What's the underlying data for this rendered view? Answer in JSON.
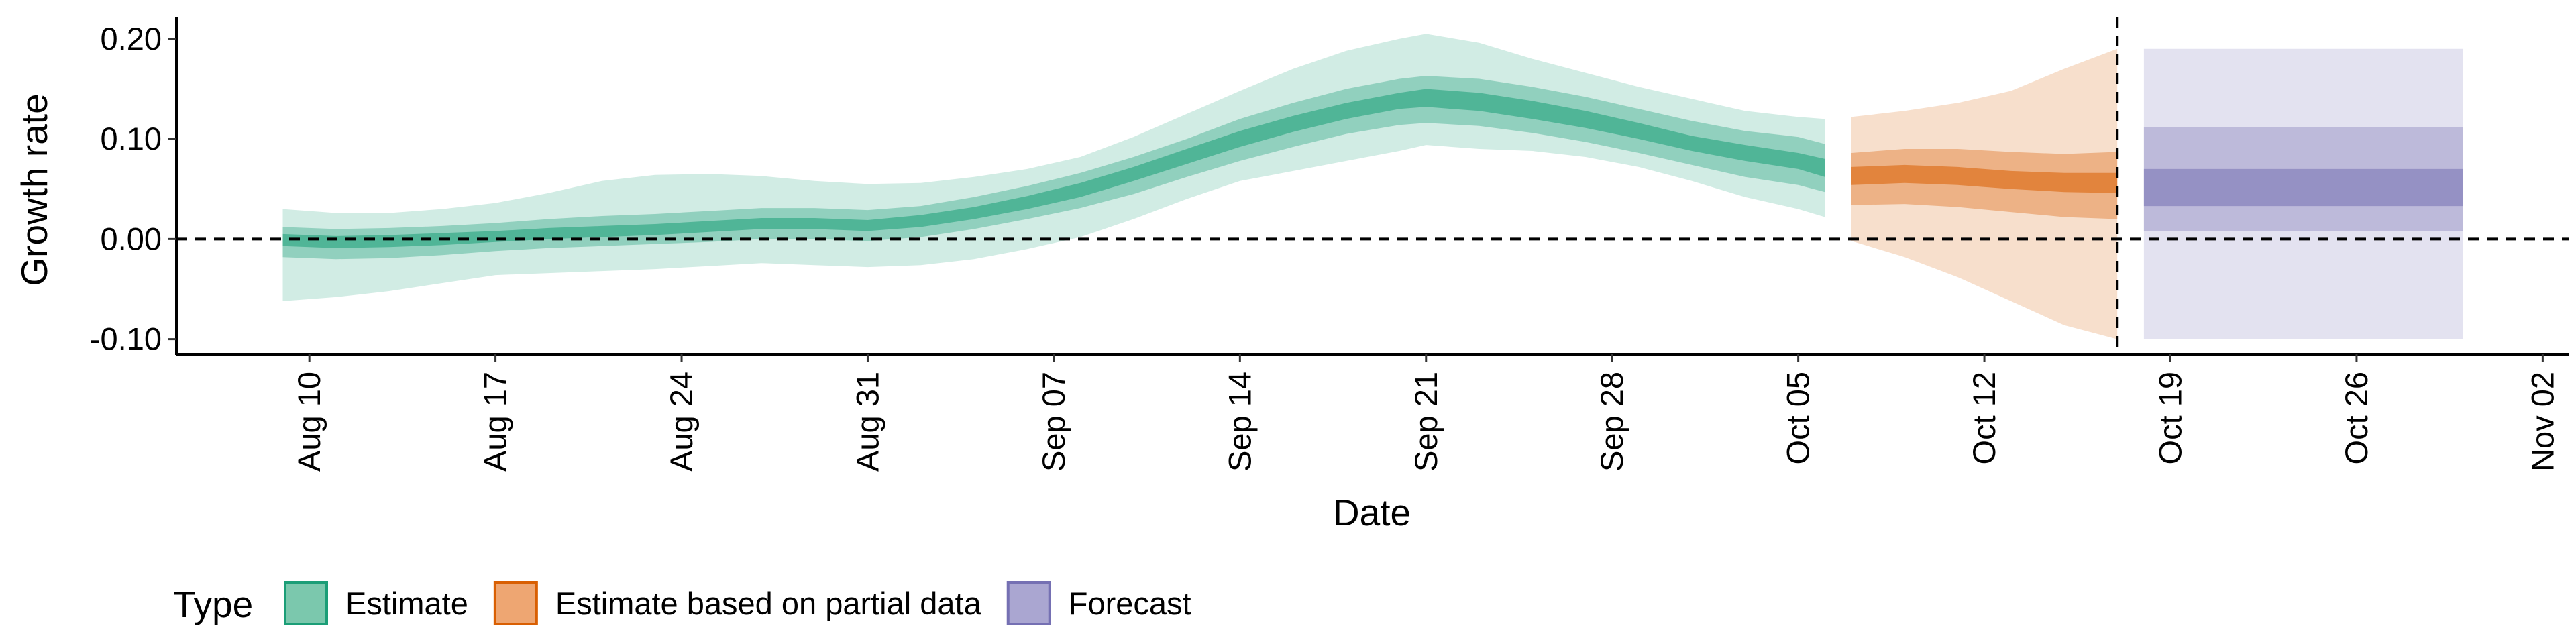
{
  "chart_data": {
    "type": "area",
    "title": "",
    "xlabel": "Date",
    "ylabel": "Growth rate",
    "x_range": [
      "2020-08-05",
      "2020-11-03"
    ],
    "ylim": [
      -0.115,
      0.222
    ],
    "y_ticks": [
      {
        "value": 0.2,
        "label": "0.20"
      },
      {
        "value": 0.1,
        "label": "0.10"
      },
      {
        "value": 0.0,
        "label": "0.00"
      },
      {
        "value": -0.1,
        "label": "-0.10"
      }
    ],
    "x_ticks": [
      {
        "date": "2020-08-10",
        "label": "Aug 10"
      },
      {
        "date": "2020-08-17",
        "label": "Aug 17"
      },
      {
        "date": "2020-08-24",
        "label": "Aug 24"
      },
      {
        "date": "2020-08-31",
        "label": "Aug 31"
      },
      {
        "date": "2020-09-07",
        "label": "Sep 07"
      },
      {
        "date": "2020-09-14",
        "label": "Sep 14"
      },
      {
        "date": "2020-09-21",
        "label": "Sep 21"
      },
      {
        "date": "2020-09-28",
        "label": "Sep 28"
      },
      {
        "date": "2020-10-05",
        "label": "Oct 05"
      },
      {
        "date": "2020-10-12",
        "label": "Oct 12"
      },
      {
        "date": "2020-10-19",
        "label": "Oct 19"
      },
      {
        "date": "2020-10-26",
        "label": "Oct 26"
      },
      {
        "date": "2020-11-02",
        "label": "Nov 02"
      }
    ],
    "reference_lines": {
      "horizontal_y": 0.0,
      "vertical_x": "2020-10-17"
    },
    "legend": {
      "title": "Type",
      "placement": "bottom-left",
      "entries": [
        {
          "label": "Estimate",
          "fill": "#7bc8ad",
          "stroke": "#1b9e77"
        },
        {
          "label": "Estimate based on partial data",
          "fill": "#eea672",
          "stroke": "#d95f02"
        },
        {
          "label": "Forecast",
          "fill": "#aaa6d1",
          "stroke": "#7570b3"
        }
      ]
    },
    "series": [
      {
        "type_label": "Estimate",
        "colors": {
          "outer": "#1b9e77",
          "mid": "#1b9e77",
          "inner": "#1b9e77"
        },
        "points": [
          {
            "x": "2020-08-09",
            "inner": [
              -0.007,
              0.005
            ],
            "mid": [
              -0.018,
              0.012
            ],
            "outer": [
              -0.062,
              0.03
            ]
          },
          {
            "x": "2020-08-11",
            "inner": [
              -0.009,
              0.003
            ],
            "mid": [
              -0.02,
              0.01
            ],
            "outer": [
              -0.058,
              0.026
            ]
          },
          {
            "x": "2020-08-13",
            "inner": [
              -0.008,
              0.004
            ],
            "mid": [
              -0.019,
              0.011
            ],
            "outer": [
              -0.052,
              0.026
            ]
          },
          {
            "x": "2020-08-15",
            "inner": [
              -0.006,
              0.006
            ],
            "mid": [
              -0.016,
              0.013
            ],
            "outer": [
              -0.044,
              0.03
            ]
          },
          {
            "x": "2020-08-17",
            "inner": [
              -0.003,
              0.008
            ],
            "mid": [
              -0.012,
              0.016
            ],
            "outer": [
              -0.036,
              0.036
            ]
          },
          {
            "x": "2020-08-19",
            "inner": [
              0.0,
              0.011
            ],
            "mid": [
              -0.009,
              0.02
            ],
            "outer": [
              -0.034,
              0.046
            ]
          },
          {
            "x": "2020-08-21",
            "inner": [
              0.002,
              0.013
            ],
            "mid": [
              -0.007,
              0.023
            ],
            "outer": [
              -0.032,
              0.058
            ]
          },
          {
            "x": "2020-08-23",
            "inner": [
              0.004,
              0.015
            ],
            "mid": [
              -0.005,
              0.025
            ],
            "outer": [
              -0.03,
              0.064
            ]
          },
          {
            "x": "2020-08-25",
            "inner": [
              0.007,
              0.018
            ],
            "mid": [
              -0.003,
              0.028
            ],
            "outer": [
              -0.027,
              0.065
            ]
          },
          {
            "x": "2020-08-27",
            "inner": [
              0.01,
              0.021
            ],
            "mid": [
              0.0,
              0.031
            ],
            "outer": [
              -0.024,
              0.063
            ]
          },
          {
            "x": "2020-08-29",
            "inner": [
              0.01,
              0.021
            ],
            "mid": [
              0.0,
              0.031
            ],
            "outer": [
              -0.026,
              0.058
            ]
          },
          {
            "x": "2020-08-31",
            "inner": [
              0.008,
              0.019
            ],
            "mid": [
              -0.002,
              0.029
            ],
            "outer": [
              -0.028,
              0.055
            ]
          },
          {
            "x": "2020-09-02",
            "inner": [
              0.012,
              0.024
            ],
            "mid": [
              0.002,
              0.033
            ],
            "outer": [
              -0.026,
              0.056
            ]
          },
          {
            "x": "2020-09-04",
            "inner": [
              0.02,
              0.032
            ],
            "mid": [
              0.01,
              0.042
            ],
            "outer": [
              -0.02,
              0.062
            ]
          },
          {
            "x": "2020-09-06",
            "inner": [
              0.03,
              0.043
            ],
            "mid": [
              0.02,
              0.053
            ],
            "outer": [
              -0.01,
              0.07
            ]
          },
          {
            "x": "2020-09-08",
            "inner": [
              0.042,
              0.056
            ],
            "mid": [
              0.031,
              0.066
            ],
            "outer": [
              0.002,
              0.082
            ]
          },
          {
            "x": "2020-09-10",
            "inner": [
              0.058,
              0.072
            ],
            "mid": [
              0.045,
              0.082
            ],
            "outer": [
              0.02,
              0.102
            ]
          },
          {
            "x": "2020-09-12",
            "inner": [
              0.075,
              0.09
            ],
            "mid": [
              0.062,
              0.1
            ],
            "outer": [
              0.04,
              0.125
            ]
          },
          {
            "x": "2020-09-14",
            "inner": [
              0.092,
              0.108
            ],
            "mid": [
              0.078,
              0.12
            ],
            "outer": [
              0.058,
              0.148
            ]
          },
          {
            "x": "2020-09-16",
            "inner": [
              0.107,
              0.123
            ],
            "mid": [
              0.092,
              0.136
            ],
            "outer": [
              0.068,
              0.17
            ]
          },
          {
            "x": "2020-09-18",
            "inner": [
              0.12,
              0.136
            ],
            "mid": [
              0.105,
              0.15
            ],
            "outer": [
              0.078,
              0.188
            ]
          },
          {
            "x": "2020-09-20",
            "inner": [
              0.13,
              0.146
            ],
            "mid": [
              0.114,
              0.16
            ],
            "outer": [
              0.088,
              0.2
            ]
          },
          {
            "x": "2020-09-21",
            "inner": [
              0.132,
              0.15
            ],
            "mid": [
              0.116,
              0.163
            ],
            "outer": [
              0.094,
              0.205
            ]
          },
          {
            "x": "2020-09-23",
            "inner": [
              0.128,
              0.146
            ],
            "mid": [
              0.113,
              0.16
            ],
            "outer": [
              0.09,
              0.196
            ]
          },
          {
            "x": "2020-09-25",
            "inner": [
              0.12,
              0.138
            ],
            "mid": [
              0.106,
              0.152
            ],
            "outer": [
              0.088,
              0.18
            ]
          },
          {
            "x": "2020-09-27",
            "inner": [
              0.111,
              0.128
            ],
            "mid": [
              0.097,
              0.142
            ],
            "outer": [
              0.082,
              0.166
            ]
          },
          {
            "x": "2020-09-29",
            "inner": [
              0.1,
              0.116
            ],
            "mid": [
              0.086,
              0.13
            ],
            "outer": [
              0.072,
              0.152
            ]
          },
          {
            "x": "2020-10-01",
            "inner": [
              0.088,
              0.103
            ],
            "mid": [
              0.074,
              0.118
            ],
            "outer": [
              0.058,
              0.14
            ]
          },
          {
            "x": "2020-10-03",
            "inner": [
              0.078,
              0.094
            ],
            "mid": [
              0.062,
              0.108
            ],
            "outer": [
              0.042,
              0.128
            ]
          },
          {
            "x": "2020-10-05",
            "inner": [
              0.07,
              0.086
            ],
            "mid": [
              0.054,
              0.102
            ],
            "outer": [
              0.03,
              0.122
            ]
          },
          {
            "x": "2020-10-06",
            "inner": [
              0.062,
              0.08
            ],
            "mid": [
              0.047,
              0.095
            ],
            "outer": [
              0.022,
              0.12
            ]
          }
        ]
      },
      {
        "type_label": "Estimate based on partial data",
        "colors": {
          "outer": "#d95f02",
          "mid": "#d95f02",
          "inner": "#d95f02"
        },
        "points": [
          {
            "x": "2020-10-07",
            "inner": [
              0.054,
              0.072
            ],
            "mid": [
              0.034,
              0.086
            ],
            "outer": [
              -0.002,
              0.122
            ]
          },
          {
            "x": "2020-10-09",
            "inner": [
              0.056,
              0.074
            ],
            "mid": [
              0.035,
              0.09
            ],
            "outer": [
              -0.018,
              0.128
            ]
          },
          {
            "x": "2020-10-11",
            "inner": [
              0.054,
              0.072
            ],
            "mid": [
              0.032,
              0.09
            ],
            "outer": [
              -0.038,
              0.136
            ]
          },
          {
            "x": "2020-10-13",
            "inner": [
              0.05,
              0.068
            ],
            "mid": [
              0.027,
              0.087
            ],
            "outer": [
              -0.062,
              0.148
            ]
          },
          {
            "x": "2020-10-15",
            "inner": [
              0.047,
              0.066
            ],
            "mid": [
              0.022,
              0.085
            ],
            "outer": [
              -0.086,
              0.17
            ]
          },
          {
            "x": "2020-10-17",
            "inner": [
              0.046,
              0.066
            ],
            "mid": [
              0.02,
              0.087
            ],
            "outer": [
              -0.1,
              0.19
            ]
          }
        ]
      },
      {
        "type_label": "Forecast",
        "colors": {
          "outer": "#7570b3",
          "mid": "#7570b3",
          "inner": "#7570b3"
        },
        "points": [
          {
            "x": "2020-10-18",
            "inner": [
              0.033,
              0.07
            ],
            "mid": [
              0.008,
              0.112
            ],
            "outer": [
              -0.1,
              0.19
            ]
          },
          {
            "x": "2020-10-30",
            "inner": [
              0.033,
              0.07
            ],
            "mid": [
              0.008,
              0.112
            ],
            "outer": [
              -0.1,
              0.19
            ]
          }
        ]
      }
    ]
  }
}
